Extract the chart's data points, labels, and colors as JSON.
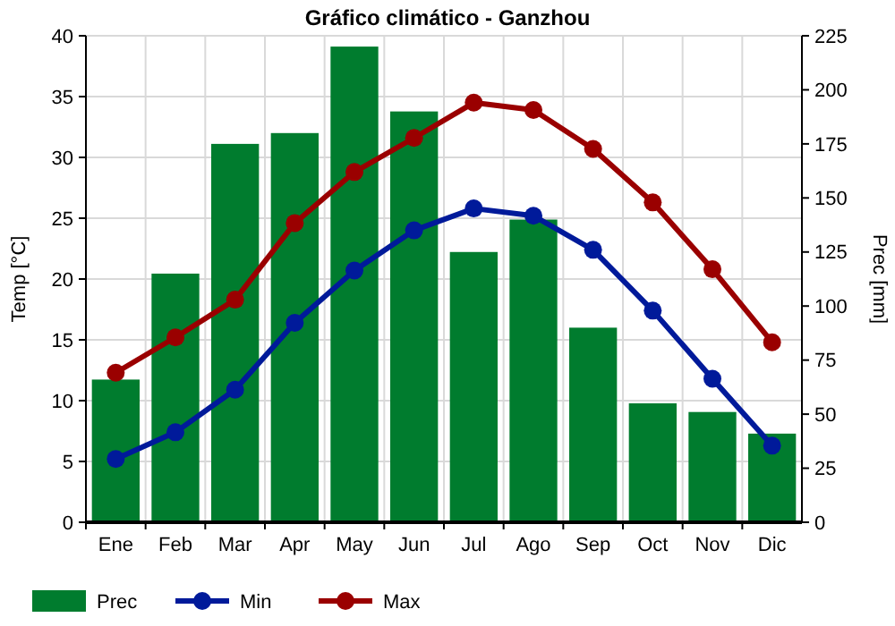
{
  "chart_data": {
    "type": "bar",
    "title": "Gráfico climático - Ganzhou",
    "ylabel": "Temp [°C]",
    "y2label": "Prec [mm]",
    "categories": [
      "Ene",
      "Feb",
      "Mar",
      "Apr",
      "May",
      "Jun",
      "Jul",
      "Ago",
      "Sep",
      "Oct",
      "Nov",
      "Dic"
    ],
    "series": [
      {
        "name": "Prec",
        "axis": "y2",
        "color": "#007c2e",
        "values": [
          66,
          115,
          175,
          180,
          220,
          190,
          125,
          140,
          90,
          55,
          51,
          41
        ]
      },
      {
        "name": "Min",
        "type": "line",
        "color": "#001a9a",
        "values": [
          5.2,
          7.4,
          10.9,
          16.4,
          20.7,
          24,
          25.8,
          25.2,
          22.4,
          17.4,
          11.8,
          6.3
        ]
      },
      {
        "name": "Max",
        "type": "line",
        "color": "#9a0000",
        "values": [
          12.3,
          15.2,
          18.3,
          24.6,
          28.8,
          31.6,
          34.5,
          33.9,
          30.7,
          26.3,
          20.8,
          14.8
        ]
      }
    ],
    "ylim": [
      0,
      40
    ],
    "yticks": [
      0,
      5,
      10,
      15,
      20,
      25,
      30,
      35,
      40
    ],
    "y2lim": [
      0,
      225
    ],
    "y2ticks": [
      0,
      25,
      50,
      75,
      100,
      125,
      150,
      175,
      200,
      225
    ],
    "grid": true,
    "legend": "bottom",
    "marker": "circle",
    "line_style": "solid"
  }
}
